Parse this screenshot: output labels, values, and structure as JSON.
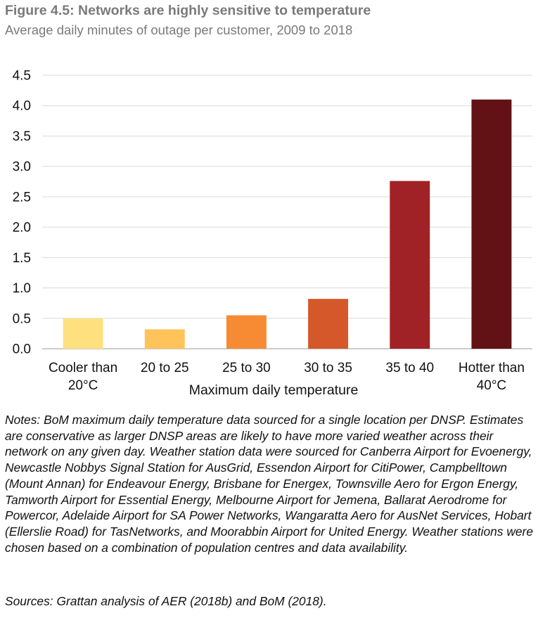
{
  "figure": {
    "title": "Figure 4.5: Networks are highly sensitive to temperature",
    "subtitle": "Average daily minutes of outage per customer, 2009 to 2018",
    "notes": "Notes: BoM maximum daily temperature data sourced for a single location per DNSP. Estimates are conservative as larger DNSP areas are likely to have more varied weather across their network on any given day. Weather station data were sourced for Canberra Airport for Evoenergy, Newcastle Nobbys Signal Station for AusGrid, Essendon Airport for CitiPower, Campbelltown (Mount Annan) for Endeavour Energy, Brisbane for Energex, Townsville Aero for Ergon Energy, Tamworth Airport for Essential Energy, Melbourne Airport for Jemena, Ballarat Aerodrome for Powercor, Adelaide Airport for SA Power Networks, Wangaratta Aero for AusNet Services, Hobart (Ellerslie Road) for TasNetworks, and Moorabbin Airport for United Energy. Weather stations were chosen based on a combination of population centres and data availability.",
    "sources": "Sources: Grattan analysis of AER (2018b) and BoM (2018)."
  },
  "chart_data": {
    "type": "bar",
    "title": "Figure 4.5: Networks are highly sensitive to temperature",
    "subtitle": "Average daily minutes of outage per customer, 2009 to 2018",
    "xlabel": "Maximum daily temperature",
    "ylabel": "",
    "categories": [
      "Cooler than\n20°C",
      "20 to 25",
      "25 to 30",
      "30 to 35",
      "35 to 40",
      "Hotter than\n40°C"
    ],
    "values": [
      0.5,
      0.32,
      0.55,
      0.82,
      2.76,
      4.1
    ],
    "colors": [
      "#FFE07F",
      "#FFC35A",
      "#F68B33",
      "#D4582A",
      "#A02226",
      "#621214"
    ],
    "ylim": [
      0,
      4.5
    ],
    "yticks": [
      "0.0",
      "0.5",
      "1.0",
      "1.5",
      "2.0",
      "2.5",
      "3.0",
      "3.5",
      "4.0",
      "4.5"
    ],
    "grid": true,
    "legend": "none"
  }
}
